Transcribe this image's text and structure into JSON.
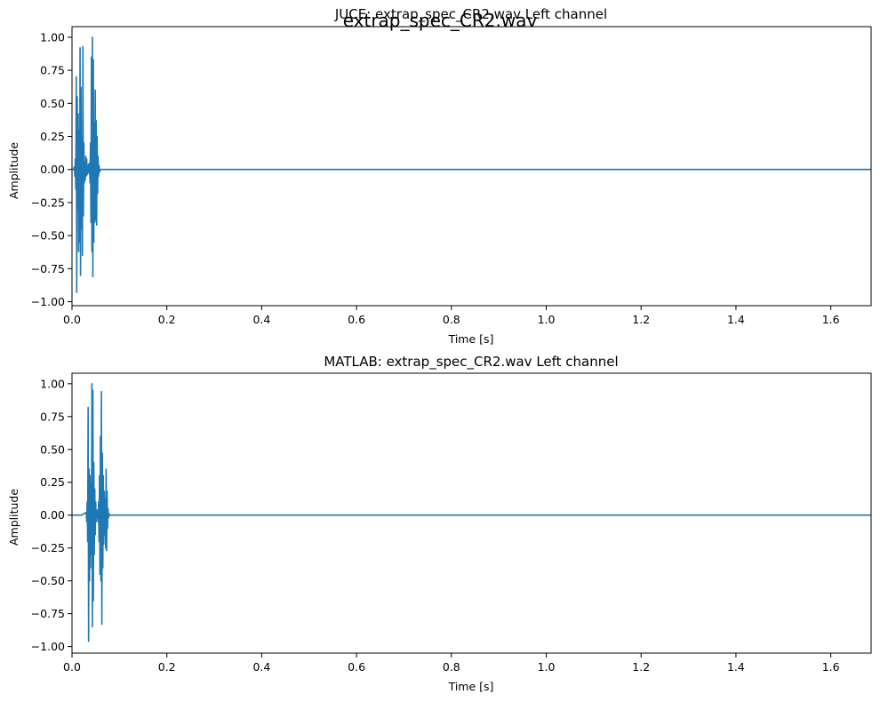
{
  "figure": {
    "suptitle": "extrap_spec_CR2.wav"
  },
  "chart_data": [
    {
      "type": "line",
      "title": "JUCE: extrap_spec_CR2.wav Left channel",
      "xlabel": "Time [s]",
      "ylabel": "Amplitude",
      "xlim": [
        0,
        1.685
      ],
      "ylim": [
        -1.03,
        1.08
      ],
      "xticks": [
        0.0,
        0.2,
        0.4,
        0.6,
        0.8,
        1.0,
        1.2,
        1.4,
        1.6
      ],
      "xtick_labels": [
        "0.0",
        "0.2",
        "0.4",
        "0.6",
        "0.8",
        "1.0",
        "1.2",
        "1.4",
        "1.6"
      ],
      "yticks": [
        -1.0,
        -0.75,
        -0.5,
        -0.25,
        0.0,
        0.25,
        0.5,
        0.75,
        1.0
      ],
      "ytick_labels": [
        "−1.00",
        "−0.75",
        "−0.50",
        "−0.25",
        "0.00",
        "0.25",
        "0.50",
        "0.75",
        "1.00"
      ],
      "grid": false,
      "line_color": "#1f77b4",
      "series": [
        {
          "x": [
            0.0,
            0.003,
            0.005,
            0.006,
            0.007,
            0.008,
            0.009,
            0.01,
            0.011,
            0.012,
            0.013,
            0.014,
            0.015,
            0.016,
            0.017,
            0.018,
            0.019,
            0.02,
            0.021,
            0.022,
            0.023,
            0.024,
            0.025,
            0.026,
            0.027,
            0.028,
            0.029,
            0.03,
            0.031,
            0.032,
            0.033,
            0.034,
            0.035,
            0.036,
            0.037,
            0.038,
            0.039,
            0.04,
            0.041,
            0.042,
            0.043,
            0.044,
            0.045,
            0.046,
            0.047,
            0.048,
            0.049,
            0.05,
            0.051,
            0.052,
            0.053,
            0.054,
            0.055,
            0.056,
            0.057,
            0.058,
            0.06,
            0.065,
            0.1,
            0.5,
            1.0,
            1.685
          ],
          "y": [
            0.0,
            0.0,
            0.02,
            -0.05,
            0.08,
            -0.15,
            0.7,
            -0.93,
            0.55,
            -0.3,
            0.42,
            -0.62,
            0.3,
            -0.55,
            0.92,
            -0.8,
            0.62,
            -0.45,
            0.25,
            -0.65,
            0.93,
            -0.35,
            0.2,
            -0.1,
            0.05,
            -0.08,
            0.1,
            -0.05,
            0.08,
            -0.04,
            0.03,
            -0.02,
            0.04,
            -0.03,
            0.05,
            -0.1,
            0.2,
            -0.4,
            0.85,
            -0.62,
            1.0,
            -0.81,
            0.83,
            -0.55,
            0.35,
            -0.4,
            0.6,
            -0.38,
            0.37,
            -0.42,
            0.25,
            -0.18,
            0.1,
            -0.05,
            0.03,
            -0.02,
            0.0,
            0.0,
            0.0,
            0.0,
            0.0,
            0.0
          ]
        }
      ]
    },
    {
      "type": "line",
      "title": "MATLAB: extrap_spec_CR2.wav Left channel",
      "xlabel": "Time [s]",
      "ylabel": "Amplitude",
      "xlim": [
        0,
        1.685
      ],
      "ylim": [
        -1.05,
        1.08
      ],
      "xticks": [
        0.0,
        0.2,
        0.4,
        0.6,
        0.8,
        1.0,
        1.2,
        1.4,
        1.6
      ],
      "xtick_labels": [
        "0.0",
        "0.2",
        "0.4",
        "0.6",
        "0.8",
        "1.0",
        "1.2",
        "1.4",
        "1.6"
      ],
      "yticks": [
        -1.0,
        -0.75,
        -0.5,
        -0.25,
        0.0,
        0.25,
        0.5,
        0.75,
        1.0
      ],
      "ytick_labels": [
        "−1.00",
        "−0.75",
        "−0.50",
        "−0.25",
        "0.00",
        "0.25",
        "0.50",
        "0.75",
        "1.00"
      ],
      "grid": false,
      "line_color": "#1f77b4",
      "series": [
        {
          "x": [
            0.0,
            0.02,
            0.03,
            0.031,
            0.032,
            0.033,
            0.034,
            0.035,
            0.036,
            0.037,
            0.038,
            0.039,
            0.04,
            0.041,
            0.042,
            0.043,
            0.044,
            0.045,
            0.046,
            0.047,
            0.048,
            0.049,
            0.05,
            0.051,
            0.052,
            0.053,
            0.054,
            0.055,
            0.056,
            0.057,
            0.058,
            0.059,
            0.06,
            0.061,
            0.062,
            0.063,
            0.064,
            0.065,
            0.066,
            0.067,
            0.068,
            0.069,
            0.07,
            0.071,
            0.072,
            0.073,
            0.074,
            0.075,
            0.076,
            0.077,
            0.078,
            0.08,
            0.085,
            0.1,
            0.5,
            1.0,
            1.685
          ],
          "y": [
            0.0,
            0.0,
            0.02,
            -0.05,
            0.1,
            -0.2,
            0.82,
            -0.96,
            0.35,
            -0.5,
            0.3,
            -0.4,
            0.25,
            -0.3,
            1.0,
            -0.85,
            0.95,
            -0.65,
            0.4,
            -0.3,
            0.2,
            -0.15,
            0.1,
            -0.05,
            0.04,
            -0.02,
            0.03,
            -0.05,
            0.1,
            -0.2,
            0.3,
            -0.45,
            0.6,
            -0.5,
            0.94,
            -0.83,
            0.47,
            -0.4,
            0.3,
            -0.22,
            0.18,
            -0.15,
            0.12,
            -0.25,
            0.35,
            -0.27,
            0.18,
            -0.1,
            0.05,
            -0.02,
            0.01,
            0.0,
            0.0,
            0.0,
            0.0,
            0.0,
            0.0
          ]
        }
      ]
    }
  ]
}
